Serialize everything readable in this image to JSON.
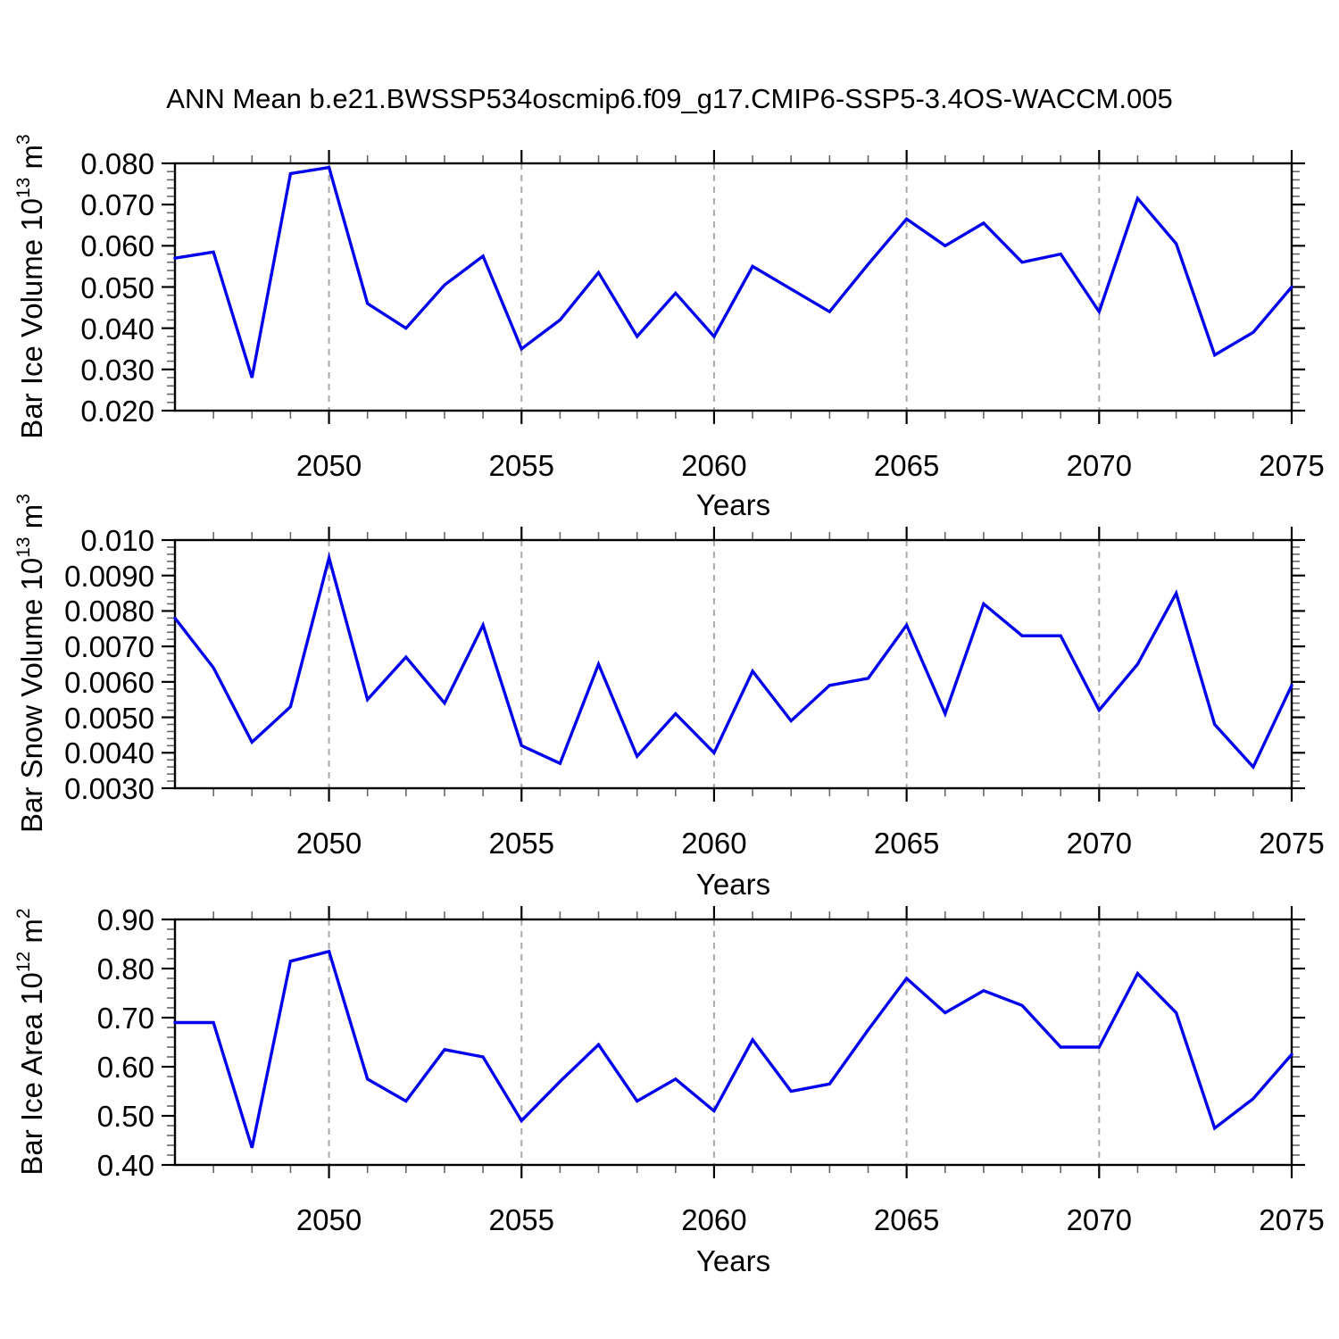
{
  "title": "ANN Mean b.e21.BWSSP534oscmip6.f09_g17.CMIP6-SSP5-3.4OS-WACCM.005",
  "line_color": "#0000ee",
  "grid_color": "#aaaaaa",
  "frame_color": "#000000",
  "minor_tick_color": "#666666",
  "x": [
    2046,
    2047,
    2048,
    2049,
    2050,
    2051,
    2052,
    2053,
    2054,
    2055,
    2056,
    2057,
    2058,
    2059,
    2060,
    2061,
    2062,
    2063,
    2064,
    2065,
    2066,
    2067,
    2068,
    2069,
    2070,
    2071,
    2072,
    2073,
    2074,
    2075
  ],
  "chart_data": [
    {
      "type": "line",
      "name": "bar-ice-volume",
      "ylabel": {
        "prefix": "Bar Ice Volume 10",
        "exp1": "13",
        "mid": " m",
        "exp2": "3"
      },
      "xlabel": "Years",
      "xlim": [
        2046,
        2075
      ],
      "ylim": [
        0.02,
        0.08
      ],
      "yticks": [
        0.08,
        0.07,
        0.06,
        0.05,
        0.04,
        0.03,
        0.02
      ],
      "ytick_labels": [
        "0.080",
        "0.070",
        "0.060",
        "0.050",
        "0.040",
        "0.030",
        "0.020"
      ],
      "yminor_step": 0.002,
      "xticks": [
        2050,
        2055,
        2060,
        2065,
        2070,
        2075
      ],
      "xtick_labels": [
        "2050",
        "2055",
        "2060",
        "2065",
        "2070",
        "2075"
      ],
      "xminor_step": 1,
      "grid_x": [
        2050,
        2055,
        2060,
        2065,
        2070
      ],
      "values": [
        0.057,
        0.0585,
        0.028,
        0.0775,
        0.079,
        0.046,
        0.04,
        0.0505,
        0.0575,
        0.035,
        0.042,
        0.0535,
        0.038,
        0.0485,
        0.038,
        0.055,
        0.0495,
        0.044,
        0.0555,
        0.0665,
        0.06,
        0.0655,
        0.056,
        0.058,
        0.044,
        0.0715,
        0.0605,
        0.0335,
        0.039,
        0.05
      ]
    },
    {
      "type": "line",
      "name": "bar-snow-volume",
      "ylabel": {
        "prefix": "Bar Snow Volume 10",
        "exp1": "13",
        "mid": " m",
        "exp2": "3"
      },
      "xlabel": "Years",
      "xlim": [
        2046,
        2075
      ],
      "ylim": [
        0.003,
        0.01
      ],
      "yticks": [
        0.01,
        0.009,
        0.008,
        0.007,
        0.006,
        0.005,
        0.004,
        0.003
      ],
      "ytick_labels": [
        "0.010",
        "0.0090",
        "0.0080",
        "0.0070",
        "0.0060",
        "0.0050",
        "0.0040",
        "0.0030"
      ],
      "yminor_step": 0.0002,
      "xticks": [
        2050,
        2055,
        2060,
        2065,
        2070,
        2075
      ],
      "xtick_labels": [
        "2050",
        "2055",
        "2060",
        "2065",
        "2070",
        "2075"
      ],
      "xminor_step": 1,
      "grid_x": [
        2050,
        2055,
        2060,
        2065,
        2070
      ],
      "values": [
        0.0078,
        0.0064,
        0.0043,
        0.0053,
        0.0095,
        0.0055,
        0.0067,
        0.0054,
        0.0076,
        0.0042,
        0.0037,
        0.0065,
        0.0039,
        0.0051,
        0.004,
        0.0063,
        0.0049,
        0.0059,
        0.0061,
        0.0076,
        0.0051,
        0.0082,
        0.0073,
        0.0073,
        0.0052,
        0.0065,
        0.0085,
        0.0048,
        0.0036,
        0.0059
      ]
    },
    {
      "type": "line",
      "name": "bar-ice-area",
      "ylabel": {
        "prefix": "Bar Ice Area 10",
        "exp1": "12",
        "mid": " m",
        "exp2": "2"
      },
      "xlabel": "Years",
      "xlim": [
        2046,
        2075
      ],
      "ylim": [
        0.4,
        0.9
      ],
      "yticks": [
        0.9,
        0.8,
        0.7,
        0.6,
        0.5,
        0.4
      ],
      "ytick_labels": [
        "0.90",
        "0.80",
        "0.70",
        "0.60",
        "0.50",
        "0.40"
      ],
      "yminor_step": 0.02,
      "xticks": [
        2050,
        2055,
        2060,
        2065,
        2070,
        2075
      ],
      "xtick_labels": [
        "2050",
        "2055",
        "2060",
        "2065",
        "2070",
        "2075"
      ],
      "xminor_step": 1,
      "grid_x": [
        2050,
        2055,
        2060,
        2065,
        2070
      ],
      "values": [
        0.69,
        0.69,
        0.435,
        0.815,
        0.835,
        0.575,
        0.53,
        0.635,
        0.62,
        0.49,
        0.57,
        0.645,
        0.53,
        0.575,
        0.51,
        0.655,
        0.55,
        0.565,
        0.675,
        0.78,
        0.71,
        0.755,
        0.725,
        0.64,
        0.64,
        0.79,
        0.71,
        0.475,
        0.535,
        0.625
      ]
    }
  ]
}
